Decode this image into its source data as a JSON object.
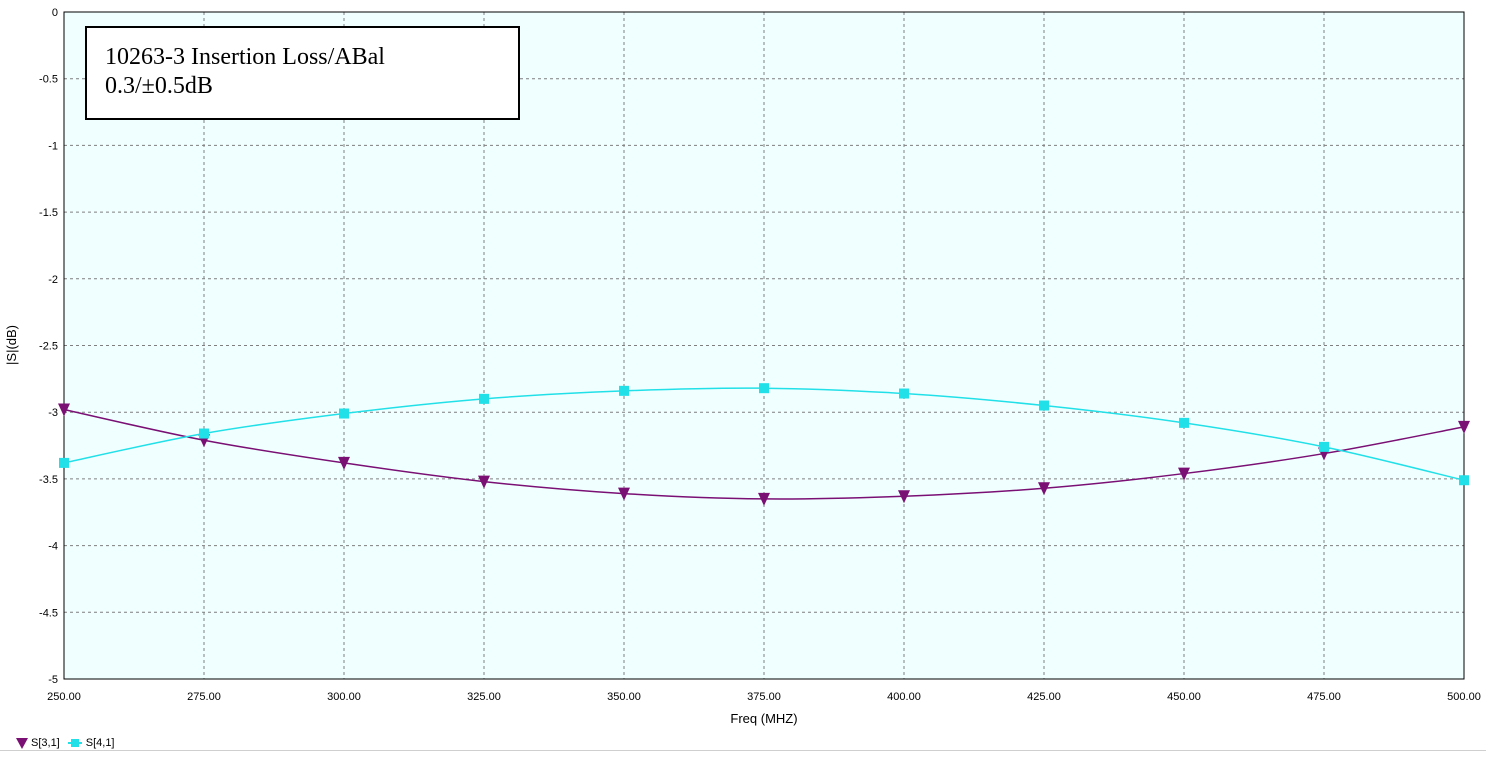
{
  "annotation": {
    "line1": "10263-3 Insertion Loss/ABal",
    "line2": "0.3/±0.5dB"
  },
  "legend": {
    "items": [
      {
        "label": "S[3,1]",
        "marker": "triangle-down",
        "color": "#7a0f74"
      },
      {
        "label": "S[4,1]",
        "marker": "square",
        "color": "#22e0e8"
      }
    ]
  },
  "chart_data": {
    "type": "line",
    "title": "",
    "xlabel": "Freq (MHZ)",
    "ylabel": "|S|(dB)",
    "xlim": [
      250,
      500
    ],
    "ylim": [
      -5,
      0
    ],
    "x_ticks": [
      "250.00",
      "275.00",
      "300.00",
      "325.00",
      "350.00",
      "375.00",
      "400.00",
      "425.00",
      "450.00",
      "475.00",
      "500.00"
    ],
    "y_ticks": [
      "0",
      "-0.5",
      "-1",
      "-1.5",
      "-2",
      "-2.5",
      "-3",
      "-3.5",
      "-4",
      "-4.5",
      "-5"
    ],
    "grid": true,
    "plot_background": "#f0ffff",
    "legend_position": "bottom-left",
    "series": [
      {
        "name": "S[3,1]",
        "color": "#7a0f74",
        "marker": "triangle-down",
        "x": [
          250,
          275,
          300,
          325,
          350,
          375,
          400,
          425,
          450,
          475,
          500
        ],
        "y": [
          -2.98,
          -3.21,
          -3.38,
          -3.52,
          -3.61,
          -3.65,
          -3.63,
          -3.57,
          -3.46,
          -3.31,
          -3.11
        ]
      },
      {
        "name": "S[4,1]",
        "color": "#22e0e8",
        "marker": "square",
        "x": [
          250,
          275,
          300,
          325,
          350,
          375,
          400,
          425,
          450,
          475,
          500
        ],
        "y": [
          -3.38,
          -3.16,
          -3.01,
          -2.9,
          -2.84,
          -2.82,
          -2.86,
          -2.95,
          -3.08,
          -3.26,
          -3.51
        ]
      }
    ]
  }
}
